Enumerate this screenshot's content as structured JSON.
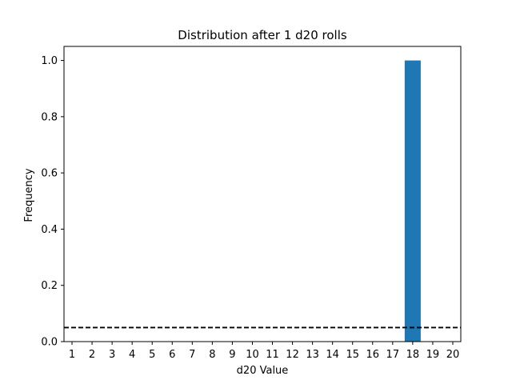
{
  "chart_data": {
    "type": "bar",
    "title": "Distribution after 1 d20 rolls",
    "xlabel": "d20 Value",
    "ylabel": "Frequency",
    "categories": [
      "1",
      "2",
      "3",
      "4",
      "5",
      "6",
      "7",
      "8",
      "9",
      "10",
      "11",
      "12",
      "13",
      "14",
      "15",
      "16",
      "17",
      "18",
      "19",
      "20"
    ],
    "values": [
      0,
      0,
      0,
      0,
      0,
      0,
      0,
      0,
      0,
      0,
      0,
      0,
      0,
      0,
      0,
      0,
      0,
      1.0,
      0,
      0
    ],
    "ylim": [
      0,
      1.05
    ],
    "yticks": [
      "0.0",
      "0.2",
      "0.4",
      "0.6",
      "0.8",
      "1.0"
    ],
    "reference_line": {
      "y": 0.05,
      "style": "dashed",
      "color": "#000000"
    },
    "bar_color": "#1f77b4",
    "grid": false,
    "legend": "none"
  }
}
